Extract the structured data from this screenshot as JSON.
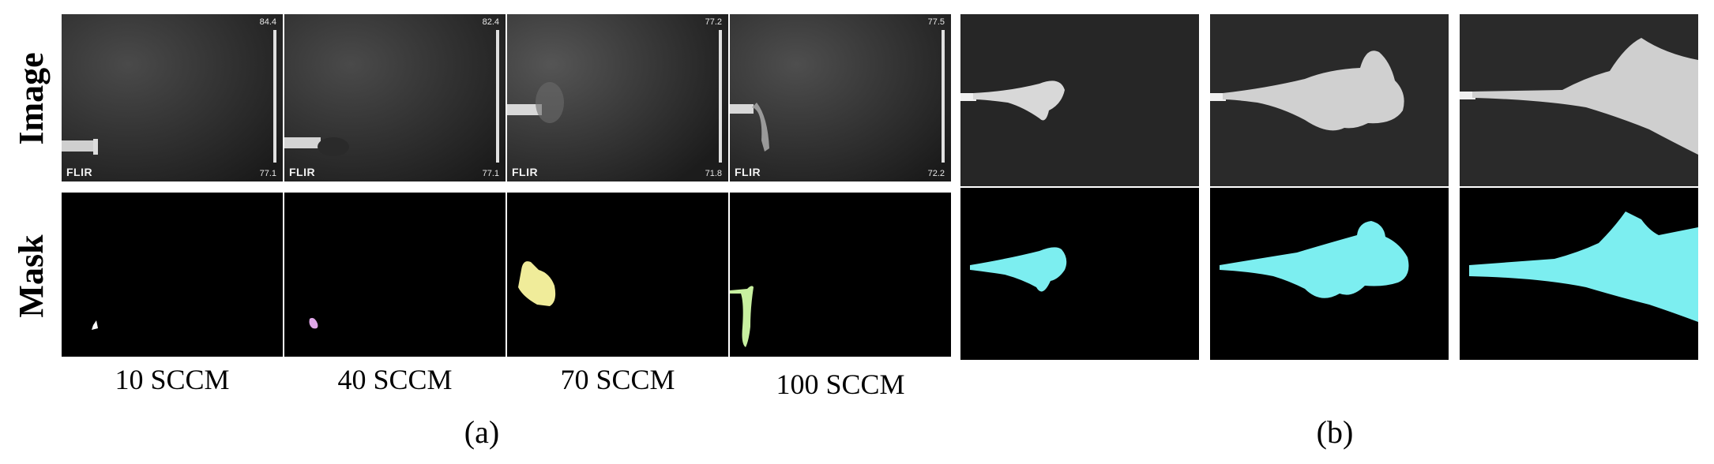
{
  "row_labels": {
    "image": "Image",
    "mask": "Mask"
  },
  "panel_a": {
    "caption": "(a)",
    "columns": [
      {
        "flow": "10 SCCM",
        "temp_max": "84.4",
        "temp_min": "77.1",
        "brand": "FLIR",
        "mask_color": "#ffffff"
      },
      {
        "flow": "40 SCCM",
        "temp_max": "82.4",
        "temp_min": "77.1",
        "brand": "FLIR",
        "mask_color": "#e0a8e8"
      },
      {
        "flow": "70 SCCM",
        "temp_max": "77.2",
        "temp_min": "71.8",
        "brand": "FLIR",
        "mask_color": "#f0ec9a"
      },
      {
        "flow": "100 SCCM",
        "temp_max": "77.5",
        "temp_min": "72.2",
        "brand": "FLIR",
        "mask_color": "#c8f0a0"
      }
    ]
  },
  "panel_b": {
    "caption": "(b)",
    "mask_color": "#7ceef0"
  }
}
